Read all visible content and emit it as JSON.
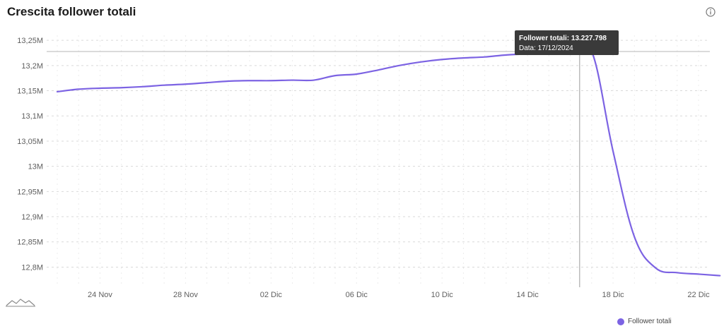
{
  "page": {
    "title": "Crescita follower totali",
    "info_icon": "info-circle-icon",
    "mini_icon": "area-chart-icon"
  },
  "colors": {
    "series": "#7c63e3",
    "grid": "#d9d9d9",
    "crosshair": "#9a9a9a"
  },
  "tooltip": {
    "line1": "Follower totali: 13.227.798",
    "line2": "Data: 17/12/2024"
  },
  "chart_data": {
    "type": "line",
    "title": "Crescita follower totali",
    "xlabel": "",
    "ylabel": "",
    "ylim": [
      12.76,
      13.26
    ],
    "y_ticks": [
      {
        "value": 13.25,
        "label": "13,25M"
      },
      {
        "value": 13.2,
        "label": "13,2M"
      },
      {
        "value": 13.15,
        "label": "13,15M"
      },
      {
        "value": 13.1,
        "label": "13,1M"
      },
      {
        "value": 13.05,
        "label": "13,05M"
      },
      {
        "value": 13.0,
        "label": "13M"
      },
      {
        "value": 12.95,
        "label": "12,95M"
      },
      {
        "value": 12.9,
        "label": "12,9M"
      },
      {
        "value": 12.85,
        "label": "12,85M"
      },
      {
        "value": 12.8,
        "label": "12,8M"
      }
    ],
    "x_ticks": [
      {
        "value": "2024-11-24",
        "label": "24 Nov"
      },
      {
        "value": "2024-11-28",
        "label": "28 Nov"
      },
      {
        "value": "2024-12-02",
        "label": "02 Dic"
      },
      {
        "value": "2024-12-06",
        "label": "06 Dic"
      },
      {
        "value": "2024-12-10",
        "label": "10 Dic"
      },
      {
        "value": "2024-12-14",
        "label": "14 Dic"
      },
      {
        "value": "2024-12-18",
        "label": "18 Dic"
      },
      {
        "value": "2024-12-22",
        "label": "22 Dic"
      }
    ],
    "xlim": [
      "2024-11-22",
      "2024-12-22"
    ],
    "grid": true,
    "legend_position": "bottom-right",
    "highlight": {
      "x": "2024-12-17",
      "y": 13.227798
    },
    "series": [
      {
        "name": "Follower totali",
        "points": [
          {
            "x": "2024-11-22",
            "y": 13.148
          },
          {
            "x": "2024-11-23",
            "y": 13.153
          },
          {
            "x": "2024-11-24",
            "y": 13.155
          },
          {
            "x": "2024-11-25",
            "y": 13.156
          },
          {
            "x": "2024-11-26",
            "y": 13.158
          },
          {
            "x": "2024-11-27",
            "y": 13.161
          },
          {
            "x": "2024-11-28",
            "y": 13.163
          },
          {
            "x": "2024-11-29",
            "y": 13.166
          },
          {
            "x": "2024-11-30",
            "y": 13.169
          },
          {
            "x": "2024-12-01",
            "y": 13.17
          },
          {
            "x": "2024-12-02",
            "y": 13.17
          },
          {
            "x": "2024-12-03",
            "y": 13.171
          },
          {
            "x": "2024-12-04",
            "y": 13.171
          },
          {
            "x": "2024-12-05",
            "y": 13.18
          },
          {
            "x": "2024-12-06",
            "y": 13.183
          },
          {
            "x": "2024-12-07",
            "y": 13.191
          },
          {
            "x": "2024-12-08",
            "y": 13.2
          },
          {
            "x": "2024-12-09",
            "y": 13.207
          },
          {
            "x": "2024-12-10",
            "y": 13.212
          },
          {
            "x": "2024-12-11",
            "y": 13.215
          },
          {
            "x": "2024-12-12",
            "y": 13.217
          },
          {
            "x": "2024-12-13",
            "y": 13.221
          },
          {
            "x": "2024-12-14",
            "y": 13.223
          },
          {
            "x": "2024-12-15",
            "y": 13.224
          },
          {
            "x": "2024-12-16",
            "y": 13.225
          },
          {
            "x": "2024-12-17",
            "y": 13.227798
          },
          {
            "x": "2024-12-18",
            "y": 13.03
          },
          {
            "x": "2024-12-19",
            "y": 12.86
          },
          {
            "x": "2024-12-20",
            "y": 12.798
          },
          {
            "x": "2024-12-21",
            "y": 12.789
          },
          {
            "x": "2024-12-22",
            "y": 12.786
          },
          {
            "x": "2024-12-23",
            "y": 12.783
          }
        ]
      }
    ]
  }
}
